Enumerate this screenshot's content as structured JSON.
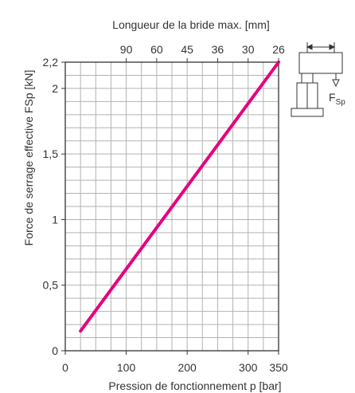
{
  "chart_data": {
    "type": "line",
    "title": "",
    "xlabel": "Pression de fonctionnement p [bar]",
    "ylabel": "Force de serrage effective FSp [kN]",
    "x2label": "Longueur de la bride max. [mm]",
    "xlim": [
      0,
      350
    ],
    "ylim": [
      0,
      2.2
    ],
    "x_ticks": [
      {
        "value": 0,
        "label": "0"
      },
      {
        "value": 100,
        "label": "100"
      },
      {
        "value": 200,
        "label": "200"
      },
      {
        "value": 300,
        "label": "300"
      },
      {
        "value": 350,
        "label": "350"
      }
    ],
    "y_ticks": [
      {
        "value": 0,
        "label": "0"
      },
      {
        "value": 0.5,
        "label": "0,5"
      },
      {
        "value": 1,
        "label": "1"
      },
      {
        "value": 1.5,
        "label": "1,5"
      },
      {
        "value": 2,
        "label": "2"
      },
      {
        "value": 2.2,
        "label": "2,2"
      }
    ],
    "x2_ticks": [
      {
        "pressure": 100,
        "label": "90"
      },
      {
        "pressure": 150,
        "label": "60"
      },
      {
        "pressure": 200,
        "label": "45"
      },
      {
        "pressure": 250,
        "label": "36"
      },
      {
        "pressure": 300,
        "label": "30"
      },
      {
        "pressure": 350,
        "label": "26"
      }
    ],
    "grid": true,
    "x_grid_step": 25,
    "y_grid_step": 0.1,
    "series": [
      {
        "color": "#e6007e",
        "x": [
          25,
          350
        ],
        "y": [
          0.15,
          2.2
        ]
      }
    ],
    "inset_label": "F",
    "inset_label_sub": "Sp"
  }
}
